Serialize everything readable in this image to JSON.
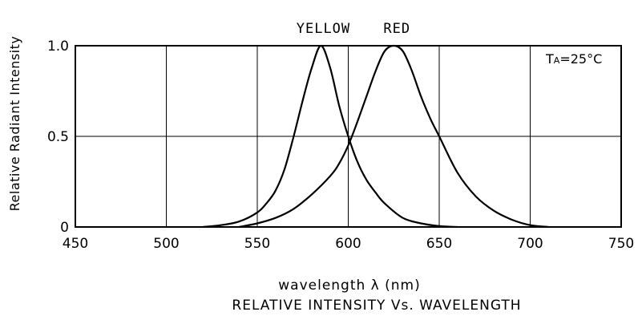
{
  "chart_data": {
    "type": "line",
    "title": "RELATIVE INTENSITY Vs. WAVELENGTH",
    "xlabel": "wavelength λ (nm)",
    "ylabel": "Relative Radiant Intensity",
    "xlim": [
      450,
      750
    ],
    "ylim": [
      0,
      1.0
    ],
    "x_ticks": [
      "450",
      "500",
      "550",
      "600",
      "650",
      "700",
      "750"
    ],
    "y_ticks": [
      "0",
      "0.5",
      "1.0"
    ],
    "grid": true,
    "annotation": {
      "main": "T",
      "subscript": "A",
      "rest": "=25°C"
    },
    "series": [
      {
        "name": "YELLOW",
        "x": [
          520,
          530,
          540,
          550,
          555,
          560,
          565,
          570,
          575,
          580,
          585,
          590,
          595,
          600,
          605,
          610,
          615,
          620,
          630,
          640,
          650,
          660
        ],
        "y": [
          0,
          0.01,
          0.03,
          0.08,
          0.13,
          0.2,
          0.32,
          0.5,
          0.7,
          0.88,
          1.0,
          0.88,
          0.67,
          0.5,
          0.36,
          0.26,
          0.19,
          0.13,
          0.05,
          0.02,
          0.005,
          0
        ]
      },
      {
        "name": "RED",
        "x": [
          540,
          550,
          560,
          570,
          580,
          590,
          595,
          600,
          605,
          610,
          615,
          620,
          625,
          630,
          635,
          640,
          645,
          650,
          660,
          670,
          680,
          690,
          700,
          710
        ],
        "y": [
          0,
          0.02,
          0.05,
          0.1,
          0.18,
          0.28,
          0.35,
          0.45,
          0.58,
          0.72,
          0.86,
          0.97,
          1.0,
          0.97,
          0.86,
          0.72,
          0.6,
          0.5,
          0.3,
          0.17,
          0.09,
          0.04,
          0.01,
          0
        ]
      }
    ]
  }
}
